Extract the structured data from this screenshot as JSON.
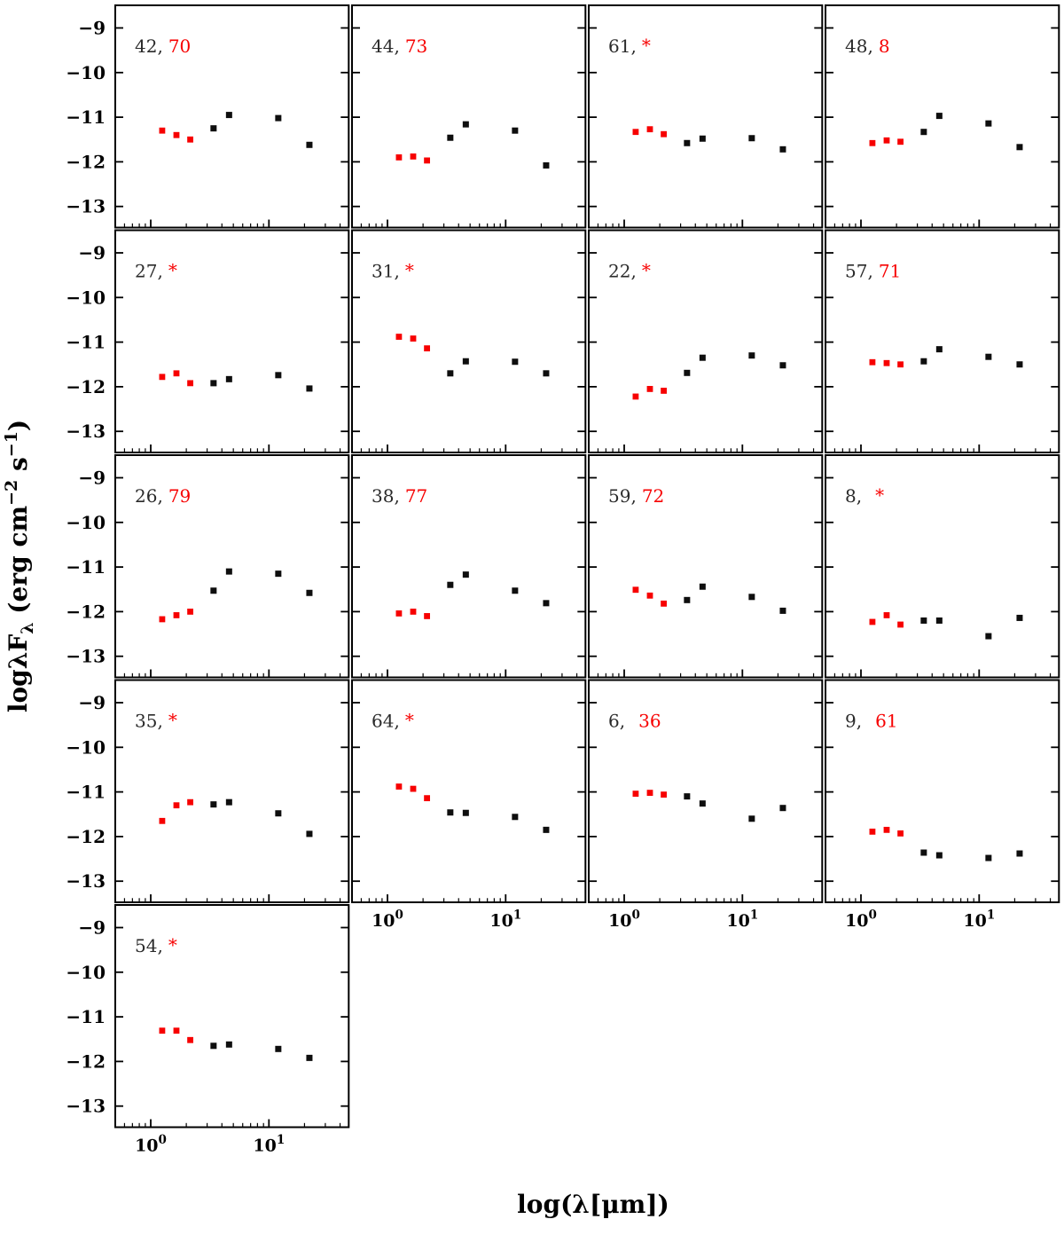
{
  "figure": {
    "background": "#ffffff",
    "xlabel": "log(λ[μm])",
    "ylabel_plain": "logλFλ (erg cm−2 s−1)",
    "ylabel_parts": [
      {
        "text": "logλF",
        "script": "normal"
      },
      {
        "text": "λ",
        "script": "sub"
      },
      {
        "text": " (erg cm",
        "script": "normal"
      },
      {
        "text": "−2",
        "script": "sup"
      },
      {
        "text": " s",
        "script": "normal"
      },
      {
        "text": "−1",
        "script": "sup"
      },
      {
        "text": ")",
        "script": "normal"
      }
    ]
  },
  "chart_data": {
    "type": "scatter",
    "description": "4x5 grid of 17 infrared SED panels; each panel plots log(lambda*F_lambda) vs wavelength for 7 photometric bands; first 3 points (near-IR J,H,K) in red, last 4 (mid-IR 3.4, 4.6, 12, 22 um) in black; panel corner label gives two IDs (black, red; * if none)",
    "x_scale": "log",
    "xlim_um": [
      0.5,
      47
    ],
    "ylim": [
      -13.47,
      -8.53
    ],
    "grid": "off",
    "legend": "none",
    "y_ticks": [
      -9,
      -10,
      -11,
      -12,
      -13
    ],
    "y_tick_labels": [
      "−9",
      "−10",
      "−11",
      "−12",
      "−13"
    ],
    "x_major_ticks": [
      {
        "value": 1,
        "base": "10",
        "exp": "0"
      },
      {
        "value": 10,
        "base": "10",
        "exp": "1"
      }
    ],
    "x_minor_ticks": [
      0.6,
      0.7,
      0.8,
      0.9,
      2,
      3,
      4,
      5,
      6,
      7,
      8,
      9,
      20,
      30,
      40
    ],
    "wavelengths_um": [
      1.25,
      1.65,
      2.16,
      3.4,
      4.6,
      12,
      22
    ],
    "colors": {
      "red_series": "#f70000",
      "black_series": "#0e0e0e",
      "frame": "#000000"
    },
    "panels": [
      {
        "label_black": "42,",
        "label_red": "70",
        "wide_gap": false,
        "red_y": [
          -11.3,
          -11.4,
          -11.5
        ],
        "black_y": [
          -11.25,
          -10.95,
          -11.02,
          -11.62
        ]
      },
      {
        "label_black": "44,",
        "label_red": "73",
        "wide_gap": false,
        "red_y": [
          -11.9,
          -11.88,
          -11.97
        ],
        "black_y": [
          -11.46,
          -11.16,
          -11.3,
          -12.08
        ]
      },
      {
        "label_black": "61,",
        "label_red": "*",
        "wide_gap": false,
        "red_y": [
          -11.33,
          -11.27,
          -11.38
        ],
        "black_y": [
          -11.58,
          -11.48,
          -11.47,
          -11.72
        ]
      },
      {
        "label_black": "48,",
        "label_red": "8",
        "wide_gap": false,
        "red_y": [
          -11.58,
          -11.52,
          -11.55
        ],
        "black_y": [
          -11.33,
          -10.97,
          -11.14,
          -11.67
        ]
      },
      {
        "label_black": "27,",
        "label_red": "*",
        "wide_gap": false,
        "red_y": [
          -11.78,
          -11.7,
          -11.92
        ],
        "black_y": [
          -11.92,
          -11.83,
          -11.74,
          -12.04
        ]
      },
      {
        "label_black": "31,",
        "label_red": "*",
        "wide_gap": false,
        "red_y": [
          -10.88,
          -10.92,
          -11.14
        ],
        "black_y": [
          -11.7,
          -11.43,
          -11.44,
          -11.7
        ]
      },
      {
        "label_black": "22,",
        "label_red": "*",
        "wide_gap": false,
        "red_y": [
          -12.22,
          -12.05,
          -12.09
        ],
        "black_y": [
          -11.69,
          -11.35,
          -11.3,
          -11.52
        ]
      },
      {
        "label_black": "57,",
        "label_red": "71",
        "wide_gap": false,
        "red_y": [
          -11.45,
          -11.47,
          -11.5
        ],
        "black_y": [
          -11.43,
          -11.16,
          -11.33,
          -11.5
        ]
      },
      {
        "label_black": "26,",
        "label_red": "79",
        "wide_gap": false,
        "red_y": [
          -12.17,
          -12.08,
          -12.0
        ],
        "black_y": [
          -11.53,
          -11.1,
          -11.15,
          -11.58
        ]
      },
      {
        "label_black": "38,",
        "label_red": "77",
        "wide_gap": false,
        "red_y": [
          -12.04,
          -12.0,
          -12.1
        ],
        "black_y": [
          -11.4,
          -11.17,
          -11.53,
          -11.81
        ]
      },
      {
        "label_black": "59,",
        "label_red": "72",
        "wide_gap": false,
        "red_y": [
          -11.51,
          -11.64,
          -11.82
        ],
        "black_y": [
          -11.74,
          -11.44,
          -11.67,
          -11.98
        ]
      },
      {
        "label_black": "8,",
        "label_red": "*",
        "wide_gap": true,
        "red_y": [
          -12.23,
          -12.08,
          -12.29
        ],
        "black_y": [
          -12.2,
          -12.2,
          -12.55,
          -12.14
        ]
      },
      {
        "label_black": "35,",
        "label_red": "*",
        "wide_gap": false,
        "red_y": [
          -11.65,
          -11.3,
          -11.23
        ],
        "black_y": [
          -11.28,
          -11.23,
          -11.48,
          -11.94
        ]
      },
      {
        "label_black": "64,",
        "label_red": "*",
        "wide_gap": false,
        "red_y": [
          -10.88,
          -10.93,
          -11.14
        ],
        "black_y": [
          -11.46,
          -11.47,
          -11.56,
          -11.85
        ]
      },
      {
        "label_black": "6,",
        "label_red": "36",
        "wide_gap": true,
        "red_y": [
          -11.04,
          -11.02,
          -11.06
        ],
        "black_y": [
          -11.1,
          -11.26,
          -11.6,
          -11.36
        ]
      },
      {
        "label_black": "9,",
        "label_red": "61",
        "wide_gap": true,
        "red_y": [
          -11.89,
          -11.85,
          -11.93
        ],
        "black_y": [
          -12.36,
          -12.42,
          -12.48,
          -12.38
        ]
      },
      {
        "label_black": "54,",
        "label_red": "*",
        "wide_gap": false,
        "red_y": [
          -11.31,
          -11.31,
          -11.52
        ],
        "black_y": [
          -11.65,
          -11.62,
          -11.72,
          -11.92
        ]
      }
    ]
  }
}
